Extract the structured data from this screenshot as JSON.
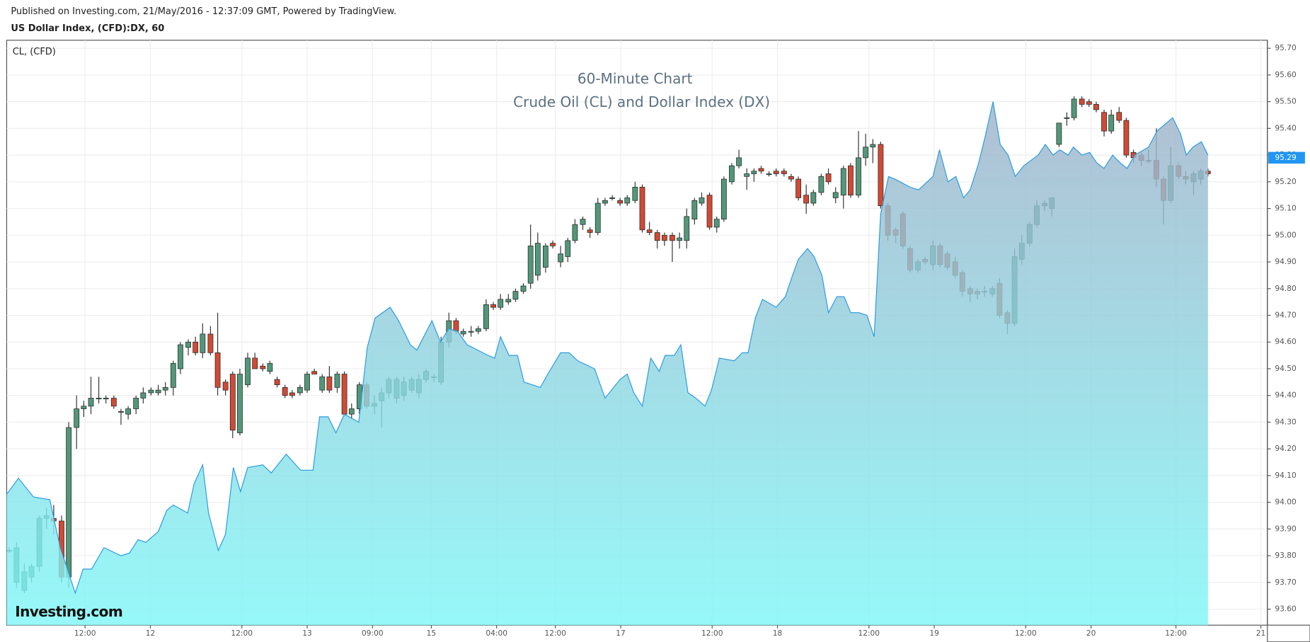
{
  "header": {
    "published": "Published on Investing.com, 21/May/2016 - 12:37:09 GMT, Powered by TradingView.",
    "symbol": "US Dollar Index, (CFD):DX, 60"
  },
  "chart_data": {
    "type": "candlestick",
    "title": "60-Minute Chart",
    "subtitle": "Crude Oil (CL) and Dollar Index (DX)",
    "watermark": "Investing.com",
    "up_color": "#53977a",
    "down_color": "#d04a35",
    "wick_color": "#333333",
    "last_price": 95.29,
    "last_price_color": "#2196f3",
    "grid": true,
    "xlim": [
      0,
      193
    ],
    "ylim": [
      93.54,
      95.73
    ],
    "xticks": [
      {
        "value": 12,
        "label": "12:00"
      },
      {
        "value": 22,
        "label": "12"
      },
      {
        "value": 36,
        "label": "12:00"
      },
      {
        "value": 46,
        "label": "13"
      },
      {
        "value": 56,
        "label": "09:00"
      },
      {
        "value": 65,
        "label": "15"
      },
      {
        "value": 75,
        "label": "04:00"
      },
      {
        "value": 84,
        "label": "12:00"
      },
      {
        "value": 94,
        "label": "17"
      },
      {
        "value": 108,
        "label": "12:00"
      },
      {
        "value": 118,
        "label": "18"
      },
      {
        "value": 132,
        "label": "12:00"
      },
      {
        "value": 142,
        "label": "19"
      },
      {
        "value": 156,
        "label": "12:00"
      },
      {
        "value": 166,
        "label": "20"
      },
      {
        "value": 179,
        "label": "12:00"
      },
      {
        "value": 192,
        "label": "21"
      }
    ],
    "yticks": [
      {
        "value": 93.6,
        "label": "93.60"
      },
      {
        "value": 93.7,
        "label": "93.70"
      },
      {
        "value": 93.8,
        "label": "93.80"
      },
      {
        "value": 93.9,
        "label": "93.90"
      },
      {
        "value": 94.0,
        "label": "94.00"
      },
      {
        "value": 94.1,
        "label": "94.10"
      },
      {
        "value": 94.2,
        "label": "94.20"
      },
      {
        "value": 94.3,
        "label": "94.30"
      },
      {
        "value": 94.4,
        "label": "94.40"
      },
      {
        "value": 94.5,
        "label": "94.50"
      },
      {
        "value": 94.6,
        "label": "94.60"
      },
      {
        "value": 94.7,
        "label": "94.70"
      },
      {
        "value": 94.8,
        "label": "94.80"
      },
      {
        "value": 94.9,
        "label": "94.90"
      },
      {
        "value": 95.0,
        "label": "95.00"
      },
      {
        "value": 95.1,
        "label": "95.10"
      },
      {
        "value": 95.2,
        "label": "95.20"
      },
      {
        "value": 95.3,
        "label": "95.30"
      },
      {
        "value": 95.4,
        "label": "95.40"
      },
      {
        "value": 95.5,
        "label": "95.50"
      },
      {
        "value": 95.6,
        "label": "95.60"
      },
      {
        "value": 95.7,
        "label": "95.70"
      }
    ],
    "x": [
      0.4,
      1.5,
      2.7,
      3.8,
      5.0,
      6.1,
      7.2,
      8.4,
      9.5,
      10.7,
      11.8,
      12.9,
      14.1,
      15.2,
      16.4,
      17.5,
      18.6,
      19.8,
      20.9,
      22.1,
      23.2,
      24.3,
      25.5,
      26.6,
      27.8,
      28.9,
      30.0,
      31.2,
      32.3,
      33.5,
      34.6,
      35.7,
      36.9,
      38.0,
      39.2,
      40.3,
      41.4,
      42.6,
      43.7,
      44.9,
      46.0,
      47.1,
      48.3,
      49.4,
      50.6,
      51.7,
      52.8,
      54.0,
      55.1,
      56.3,
      57.4,
      58.5,
      59.7,
      60.8,
      62.0,
      63.1,
      64.2,
      65.4,
      66.5,
      67.7,
      68.8,
      69.9,
      71.1,
      72.2,
      73.4,
      74.5,
      75.6,
      76.8,
      77.9,
      79.1,
      80.2,
      81.3,
      82.5,
      83.6,
      84.8,
      85.9,
      87.0,
      88.2,
      89.3,
      90.5,
      91.6,
      92.7,
      93.9,
      95.0,
      96.2,
      97.3,
      98.4,
      99.6,
      100.7,
      101.9,
      103.0,
      104.1,
      105.3,
      106.4,
      107.6,
      108.7,
      109.8,
      111.0,
      112.1,
      113.3,
      114.4,
      115.5,
      116.7,
      117.8,
      119.0,
      120.1,
      121.2,
      122.4,
      123.5,
      124.7,
      125.8,
      126.9,
      128.1,
      129.2,
      130.4,
      131.5,
      132.6,
      133.8,
      134.9,
      136.1,
      137.2,
      138.3,
      139.5,
      140.6,
      141.8,
      142.9,
      144.0,
      145.2,
      146.3,
      147.5,
      148.6,
      149.7,
      150.9,
      152.0,
      153.2,
      154.3,
      155.4,
      156.6,
      157.7,
      158.9,
      160.0,
      161.1,
      162.3,
      163.4,
      164.6,
      165.7,
      166.8,
      168.0,
      169.1,
      170.3,
      171.4,
      172.5,
      173.7,
      174.8,
      176.0,
      177.1,
      178.2,
      179.4,
      180.5,
      181.7,
      182.8,
      183.9
    ],
    "open": [
      93.82,
      93.7,
      93.67,
      93.72,
      93.76,
      93.94,
      93.94,
      93.93,
      93.72,
      94.28,
      94.35,
      94.36,
      94.39,
      94.39,
      94.39,
      94.34,
      94.33,
      94.35,
      94.39,
      94.41,
      94.41,
      94.42,
      94.43,
      94.5,
      94.58,
      94.6,
      94.56,
      94.63,
      94.56,
      94.45,
      94.48,
      94.26,
      94.44,
      94.54,
      94.51,
      94.49,
      94.46,
      94.43,
      94.41,
      94.41,
      94.42,
      94.49,
      94.42,
      94.47,
      94.43,
      94.48,
      94.33,
      94.35,
      94.44,
      94.36,
      94.38,
      94.41,
      94.39,
      94.4,
      94.42,
      94.41,
      94.46,
      94.47,
      94.45,
      94.6,
      94.68,
      94.63,
      94.64,
      94.64,
      94.65,
      94.74,
      94.73,
      94.75,
      94.76,
      94.79,
      94.82,
      94.85,
      94.88,
      94.97,
      94.9,
      94.92,
      94.98,
      95.04,
      95.02,
      95.01,
      95.12,
      95.14,
      95.13,
      95.12,
      95.13,
      95.18,
      95.02,
      95.01,
      95.0,
      95.0,
      94.98,
      94.98,
      95.06,
      95.12,
      95.15,
      95.03,
      95.06,
      95.2,
      95.26,
      95.22,
      95.23,
      95.25,
      95.23,
      95.24,
      95.24,
      95.22,
      95.21,
      95.15,
      95.12,
      95.16,
      95.23,
      95.14,
      95.15,
      95.26,
      95.15,
      95.29,
      95.33,
      95.34,
      95.11,
      95.02,
      95.08,
      94.95,
      94.87,
      94.91,
      94.89,
      94.96,
      94.93,
      94.9,
      94.86,
      94.8,
      94.79,
      94.79,
      94.78,
      94.82,
      94.71,
      94.67,
      94.91,
      94.97,
      95.04,
      95.11,
      95.1,
      95.34,
      95.44,
      95.44,
      95.51,
      95.5,
      95.49,
      95.46,
      95.39,
      95.46,
      95.43,
      95.31,
      95.3,
      95.28,
      95.28,
      95.21,
      95.13,
      95.26,
      95.22,
      95.2,
      95.21,
      95.24
    ],
    "high": [
      93.83,
      93.85,
      93.77,
      93.77,
      93.95,
      93.98,
      93.99,
      93.95,
      94.3,
      94.4,
      94.38,
      94.47,
      94.47,
      94.4,
      94.4,
      94.35,
      94.36,
      94.4,
      94.43,
      94.43,
      94.44,
      94.45,
      94.53,
      94.6,
      94.61,
      94.62,
      94.67,
      94.66,
      94.71,
      94.46,
      94.49,
      94.5,
      94.56,
      94.56,
      94.52,
      94.53,
      94.47,
      94.44,
      94.42,
      94.44,
      94.49,
      94.5,
      94.48,
      94.51,
      94.49,
      94.49,
      94.37,
      94.45,
      94.45,
      94.4,
      94.43,
      94.47,
      94.47,
      94.47,
      94.47,
      94.48,
      94.5,
      94.48,
      94.62,
      94.71,
      94.69,
      94.65,
      94.66,
      94.66,
      94.76,
      94.75,
      94.78,
      94.78,
      94.8,
      94.82,
      95.04,
      95.01,
      94.97,
      94.98,
      94.96,
      94.99,
      95.06,
      95.07,
      95.03,
      95.14,
      95.14,
      95.15,
      95.14,
      95.15,
      95.2,
      95.19,
      95.05,
      95.02,
      95.01,
      95.01,
      95.01,
      95.1,
      95.14,
      95.16,
      95.16,
      95.07,
      95.22,
      95.27,
      95.32,
      95.25,
      95.25,
      95.26,
      95.24,
      95.25,
      95.25,
      95.23,
      95.22,
      95.19,
      95.17,
      95.23,
      95.25,
      95.18,
      95.26,
      95.27,
      95.39,
      95.38,
      95.36,
      95.35,
      95.12,
      95.03,
      95.09,
      94.96,
      94.91,
      94.92,
      94.98,
      94.97,
      94.94,
      94.92,
      94.87,
      94.81,
      94.8,
      94.81,
      94.81,
      94.84,
      94.72,
      94.95,
      95.0,
      95.05,
      95.13,
      95.13,
      95.14,
      95.42,
      95.46,
      95.52,
      95.52,
      95.51,
      95.5,
      95.47,
      95.47,
      95.48,
      95.44,
      95.32,
      95.31,
      95.32,
      95.4,
      95.22,
      95.33,
      95.27,
      95.24,
      95.24,
      95.25,
      95.25
    ],
    "low": [
      93.81,
      93.68,
      93.66,
      93.7,
      93.74,
      93.9,
      93.88,
      93.7,
      93.68,
      94.2,
      94.32,
      94.33,
      94.37,
      94.37,
      94.35,
      94.29,
      94.31,
      94.33,
      94.37,
      94.4,
      94.4,
      94.4,
      94.4,
      94.48,
      94.55,
      94.55,
      94.54,
      94.55,
      94.4,
      94.4,
      94.24,
      94.25,
      94.43,
      94.5,
      94.49,
      94.48,
      94.43,
      94.39,
      94.39,
      94.4,
      94.41,
      94.48,
      94.41,
      94.41,
      94.41,
      94.32,
      94.31,
      94.33,
      94.35,
      94.33,
      94.28,
      94.39,
      94.37,
      94.38,
      94.41,
      94.39,
      94.45,
      94.45,
      94.44,
      94.58,
      94.63,
      94.62,
      94.62,
      94.63,
      94.64,
      94.72,
      94.72,
      94.74,
      94.75,
      94.78,
      94.8,
      94.83,
      94.86,
      94.95,
      94.88,
      94.9,
      94.97,
      95.02,
      94.99,
      95.0,
      95.11,
      95.13,
      95.11,
      95.11,
      95.12,
      95.01,
      95.0,
      94.95,
      94.96,
      94.9,
      94.95,
      94.95,
      95.04,
      95.11,
      95.02,
      95.01,
      95.05,
      95.19,
      95.25,
      95.17,
      95.2,
      95.23,
      95.22,
      95.22,
      95.22,
      95.2,
      95.13,
      95.08,
      95.11,
      95.15,
      95.19,
      95.12,
      95.1,
      95.14,
      95.14,
      95.26,
      95.27,
      95.1,
      94.98,
      94.97,
      94.95,
      94.86,
      94.86,
      94.89,
      94.87,
      94.88,
      94.87,
      94.84,
      94.77,
      94.75,
      94.76,
      94.77,
      94.77,
      94.69,
      94.63,
      94.66,
      94.89,
      94.96,
      95.03,
      95.09,
      95.07,
      95.33,
      95.41,
      95.43,
      95.48,
      95.48,
      95.46,
      95.37,
      95.38,
      95.42,
      95.29,
      95.27,
      95.26,
      95.27,
      95.18,
      95.04,
      95.12,
      95.21,
      95.19,
      95.15,
      95.19,
      95.22
    ],
    "close": [
      93.82,
      93.83,
      93.74,
      93.76,
      93.94,
      93.95,
      93.93,
      93.72,
      94.28,
      94.35,
      94.36,
      94.39,
      94.39,
      94.39,
      94.36,
      94.34,
      94.35,
      94.39,
      94.41,
      94.42,
      94.42,
      94.43,
      94.52,
      94.59,
      94.6,
      94.56,
      94.63,
      94.56,
      94.43,
      94.42,
      94.27,
      94.48,
      94.54,
      94.5,
      94.5,
      94.52,
      94.44,
      94.4,
      94.4,
      94.43,
      94.48,
      94.48,
      94.47,
      94.42,
      94.48,
      94.33,
      94.35,
      94.44,
      94.36,
      94.37,
      94.41,
      94.46,
      94.46,
      94.45,
      94.46,
      94.46,
      94.49,
      94.47,
      94.6,
      94.68,
      94.64,
      94.64,
      94.64,
      94.65,
      94.74,
      94.73,
      94.76,
      94.76,
      94.79,
      94.81,
      94.96,
      94.97,
      94.96,
      94.96,
      94.93,
      94.98,
      95.04,
      95.06,
      95.01,
      95.12,
      95.13,
      95.14,
      95.12,
      95.14,
      95.18,
      95.02,
      95.01,
      94.98,
      94.98,
      94.98,
      94.99,
      95.07,
      95.13,
      95.14,
      95.03,
      95.06,
      95.21,
      95.26,
      95.29,
      95.23,
      95.24,
      95.24,
      95.23,
      95.23,
      95.23,
      95.21,
      95.14,
      95.12,
      95.16,
      95.22,
      95.2,
      95.16,
      95.25,
      95.15,
      95.29,
      95.33,
      95.34,
      95.11,
      95.0,
      95.0,
      94.96,
      94.87,
      94.9,
      94.9,
      94.96,
      94.89,
      94.88,
      94.85,
      94.79,
      94.78,
      94.78,
      94.79,
      94.8,
      94.7,
      94.67,
      94.92,
      94.97,
      95.04,
      95.11,
      95.12,
      95.14,
      95.42,
      95.44,
      95.51,
      95.49,
      95.49,
      95.47,
      95.39,
      95.45,
      95.43,
      95.3,
      95.29,
      95.28,
      95.28,
      95.21,
      95.13,
      95.26,
      95.22,
      95.21,
      95.23,
      95.24,
      95.23
    ],
    "series": [
      {
        "name": "CL,  (CFD)",
        "type": "area",
        "color": "#2a9be0",
        "fill": [
          "#9fb2c9",
          "#7ff7f7"
        ],
        "x": [
          0,
          1.8,
          4.1,
          6.6,
          8.2,
          10.5,
          11.7,
          13.0,
          14.9,
          17.5,
          18.8,
          20.1,
          21.3,
          23.2,
          24.5,
          25.5,
          27.7,
          28.7,
          30.0,
          30.9,
          32.4,
          33.5,
          34.7,
          35.8,
          36.9,
          39.2,
          40.5,
          42.8,
          45.0,
          46.9,
          47.9,
          49.2,
          50.4,
          51.7,
          53.9,
          55.2,
          56.4,
          58.7,
          60.0,
          61.8,
          62.8,
          65.1,
          66.4,
          67.7,
          69.0,
          70.5,
          73.7,
          74.7,
          75.6,
          76.9,
          78.2,
          79.2,
          81.7,
          82.6,
          84.8,
          86.1,
          87.4,
          90.0,
          91.6,
          93.9,
          95.0,
          96.0,
          97.3,
          98.6,
          99.9,
          100.8,
          102.2,
          103.2,
          104.3,
          105.5,
          106.9,
          107.9,
          109.1,
          111.4,
          112.6,
          113.5,
          114.6,
          115.7,
          117.8,
          119.2,
          120.3,
          121.2,
          122.6,
          123.6,
          124.8,
          125.8,
          127.1,
          128.2,
          129.2,
          130.5,
          131.7,
          132.8,
          133.8,
          135.0,
          136.0,
          138.3,
          139.6,
          141.8,
          142.8,
          144.1,
          145.3,
          146.5,
          147.5,
          148.8,
          149.8,
          151.0,
          152.1,
          153.3,
          154.4,
          155.7,
          157.9,
          159.0,
          160.2,
          161.2,
          162.5,
          163.3,
          164.6,
          165.8,
          166.9,
          168.0,
          169.3,
          170.5,
          171.5,
          172.7,
          174.8,
          176.1,
          178.5,
          179.7,
          180.6,
          181.6,
          182.9,
          183.9
        ],
        "values": [
          94.03,
          94.09,
          94.02,
          94.01,
          93.83,
          93.66,
          93.75,
          93.75,
          93.83,
          93.8,
          93.81,
          93.86,
          93.85,
          93.89,
          93.97,
          93.99,
          93.96,
          94.07,
          94.14,
          93.96,
          93.82,
          93.88,
          94.13,
          94.04,
          94.13,
          94.14,
          94.11,
          94.18,
          94.12,
          94.12,
          94.32,
          94.32,
          94.26,
          94.33,
          94.3,
          94.58,
          94.69,
          94.73,
          94.68,
          94.59,
          94.57,
          94.68,
          94.6,
          94.65,
          94.64,
          94.59,
          94.55,
          94.54,
          94.62,
          94.55,
          94.55,
          94.45,
          94.43,
          94.47,
          94.56,
          94.56,
          94.53,
          94.5,
          94.39,
          94.46,
          94.48,
          94.41,
          94.36,
          94.54,
          94.49,
          94.55,
          94.55,
          94.59,
          94.41,
          94.39,
          94.36,
          94.42,
          94.54,
          94.53,
          94.56,
          94.56,
          94.69,
          94.76,
          94.73,
          94.77,
          94.85,
          94.91,
          94.95,
          94.92,
          94.85,
          94.71,
          94.77,
          94.77,
          94.71,
          94.71,
          94.7,
          94.62,
          95.08,
          95.22,
          95.21,
          95.18,
          95.17,
          95.22,
          95.32,
          95.2,
          95.22,
          95.14,
          95.17,
          95.27,
          95.37,
          95.5,
          95.34,
          95.3,
          95.22,
          95.26,
          95.3,
          95.34,
          95.3,
          95.32,
          95.3,
          95.33,
          95.3,
          95.31,
          95.27,
          95.25,
          95.3,
          95.27,
          95.25,
          95.3,
          95.33,
          95.39,
          95.44,
          95.38,
          95.3,
          95.33,
          95.35,
          95.3
        ]
      }
    ]
  }
}
